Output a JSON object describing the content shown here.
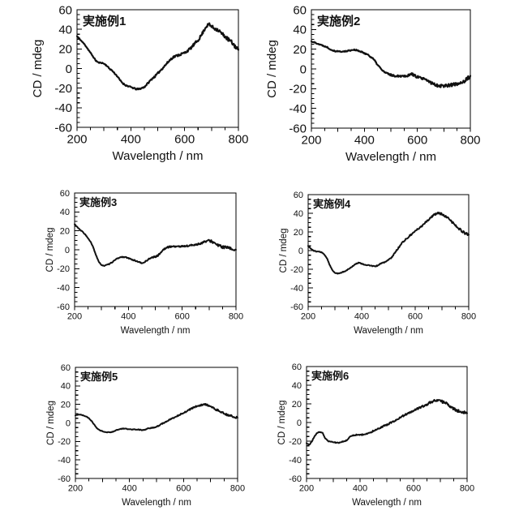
{
  "figure": {
    "background": "#ffffff",
    "line_color": "#111111",
    "axis_color": "#000000"
  },
  "chart_data": [
    {
      "type": "line",
      "title": "実施例1",
      "xlabel": "Wavelength / nm",
      "ylabel": "CD / mdeg",
      "xlim": [
        200,
        800
      ],
      "ylim": [
        -60,
        60
      ],
      "xticks": [
        200,
        400,
        600,
        800
      ],
      "yticks": [
        60,
        40,
        20,
        0,
        -20,
        -40,
        -60
      ],
      "x_minor_step": 50,
      "y_minor_step": 5,
      "x_start": 200,
      "x_step": 10,
      "values": [
        33,
        30,
        27,
        24,
        20,
        16,
        12,
        8,
        6,
        6,
        5,
        3,
        0,
        -2,
        -5,
        -8,
        -12,
        -15,
        -17,
        -18,
        -19,
        -20,
        -21,
        -21,
        -20,
        -19,
        -16,
        -13,
        -10,
        -8,
        -5,
        -2,
        1,
        4,
        7,
        10,
        12,
        13,
        14,
        15,
        16,
        18,
        20,
        23,
        26,
        29,
        33,
        38,
        43,
        45,
        43,
        41,
        40,
        38,
        35,
        33,
        30,
        28,
        25,
        22,
        19
      ]
    },
    {
      "type": "line",
      "title": "実施例2",
      "xlabel": "Wavelength / nm",
      "ylabel": "CD / mdeg",
      "xlim": [
        200,
        800
      ],
      "ylim": [
        -60,
        60
      ],
      "xticks": [
        200,
        400,
        600,
        800
      ],
      "yticks": [
        60,
        40,
        20,
        0,
        -20,
        -40,
        -60
      ],
      "x_minor_step": 50,
      "y_minor_step": 5,
      "x_start": 200,
      "x_step": 10,
      "values": [
        28,
        27,
        26,
        25,
        24,
        23,
        22,
        20,
        19,
        18,
        18,
        17.5,
        17.5,
        18,
        18.5,
        19,
        19.5,
        19,
        18,
        17,
        16,
        15,
        13,
        11,
        8,
        4,
        1,
        -2,
        -4,
        -5,
        -6,
        -7,
        -7,
        -7,
        -7,
        -7,
        -7,
        -6,
        -5,
        -7,
        -8,
        -9,
        -10,
        -11,
        -12,
        -14,
        -15,
        -16,
        -17,
        -17,
        -17,
        -17,
        -16,
        -16,
        -16,
        -15,
        -14,
        -13,
        -12,
        -10,
        -7
      ]
    },
    {
      "type": "line",
      "title": "実施例3",
      "xlabel": "Wavelength / nm",
      "ylabel": "CD / mdeg",
      "xlim": [
        200,
        800
      ],
      "ylim": [
        -60,
        60
      ],
      "xticks": [
        200,
        400,
        600,
        800
      ],
      "yticks": [
        60,
        40,
        20,
        0,
        -20,
        -40,
        -60
      ],
      "x_minor_step": 50,
      "y_minor_step": 5,
      "x_start": 200,
      "x_step": 10,
      "values": [
        27,
        24,
        21,
        19,
        16,
        12,
        8,
        2,
        -6,
        -13,
        -16,
        -17,
        -16,
        -15,
        -13,
        -11,
        -9,
        -8,
        -7.5,
        -8,
        -9,
        -10,
        -11,
        -12,
        -13,
        -14.5,
        -13,
        -11,
        -9,
        -8,
        -7.5,
        -6,
        -3,
        0,
        2,
        3,
        3.5,
        3.5,
        3.5,
        3.5,
        3.5,
        4,
        4,
        4.5,
        5,
        5.5,
        6,
        7,
        8,
        9,
        9.5,
        9,
        7,
        5,
        4,
        3,
        2.5,
        2,
        1,
        0.5,
        0
      ]
    },
    {
      "type": "line",
      "title": "実施例4",
      "xlabel": "Wavelength / nm",
      "ylabel": "CD / mdeg",
      "xlim": [
        200,
        800
      ],
      "ylim": [
        -60,
        60
      ],
      "xticks": [
        200,
        400,
        600,
        800
      ],
      "yticks": [
        60,
        40,
        20,
        0,
        -20,
        -40,
        -60
      ],
      "x_minor_step": 50,
      "y_minor_step": 5,
      "x_start": 200,
      "x_step": 10,
      "values": [
        5,
        2,
        0,
        -1,
        -1,
        -2,
        -4,
        -8,
        -15,
        -21,
        -24,
        -24.5,
        -24,
        -23,
        -22,
        -20,
        -18,
        -16,
        -14,
        -13,
        -14,
        -15,
        -15.5,
        -16,
        -16.5,
        -17,
        -16,
        -14,
        -13,
        -12,
        -10,
        -8,
        -4,
        0,
        4,
        8,
        11,
        13,
        16,
        18,
        21,
        23,
        25,
        28,
        31,
        33,
        36,
        38,
        40,
        40,
        39,
        37,
        35,
        33,
        30,
        27,
        24,
        22,
        20,
        18,
        17
      ]
    },
    {
      "type": "line",
      "title": "実施例5",
      "xlabel": "Wavelength / nm",
      "ylabel": "CD / mdeg",
      "xlim": [
        200,
        800
      ],
      "ylim": [
        -60,
        60
      ],
      "xticks": [
        200,
        400,
        600,
        800
      ],
      "yticks": [
        60,
        40,
        20,
        0,
        -20,
        -40,
        -60
      ],
      "x_minor_step": 50,
      "y_minor_step": 5,
      "x_start": 200,
      "x_step": 10,
      "values": [
        8,
        9,
        9,
        8,
        7,
        5,
        2,
        -2,
        -6,
        -8,
        -9,
        -10,
        -10,
        -10,
        -9.5,
        -8,
        -7,
        -6.5,
        -6,
        -6.5,
        -7,
        -7,
        -7,
        -7,
        -7.5,
        -8,
        -7,
        -6,
        -5.5,
        -5,
        -4,
        -3,
        -1,
        0.5,
        2,
        3.5,
        5,
        6.5,
        8,
        9.5,
        11,
        12.5,
        14,
        15.5,
        17,
        18,
        19,
        19.5,
        20,
        19,
        17.5,
        16,
        14.5,
        13,
        11.5,
        10,
        9,
        8,
        7,
        6,
        5.5
      ]
    },
    {
      "type": "line",
      "title": "実施例6",
      "xlabel": "Wavelength / nm",
      "ylabel": "CD / mdeg",
      "xlim": [
        200,
        800
      ],
      "ylim": [
        -60,
        60
      ],
      "xticks": [
        200,
        400,
        600,
        800
      ],
      "yticks": [
        60,
        40,
        20,
        0,
        -20,
        -40,
        -60
      ],
      "x_minor_step": 50,
      "y_minor_step": 5,
      "x_start": 200,
      "x_step": 10,
      "values": [
        -22,
        -24,
        -20,
        -15,
        -11,
        -10,
        -11,
        -17,
        -20,
        -20.5,
        -21,
        -21.5,
        -22,
        -21,
        -20,
        -19,
        -16,
        -14,
        -13.5,
        -13,
        -13,
        -13,
        -12.5,
        -11.5,
        -10.5,
        -9,
        -8,
        -6.5,
        -5,
        -3.5,
        -2.5,
        -1,
        0.5,
        2,
        3.5,
        5,
        7,
        8.5,
        10,
        11.5,
        13,
        14.5,
        15.5,
        17,
        18,
        19.5,
        21,
        22.5,
        23.5,
        24,
        23,
        22,
        20.5,
        19,
        17,
        15,
        13.5,
        12,
        11,
        10.5,
        10
      ]
    }
  ]
}
